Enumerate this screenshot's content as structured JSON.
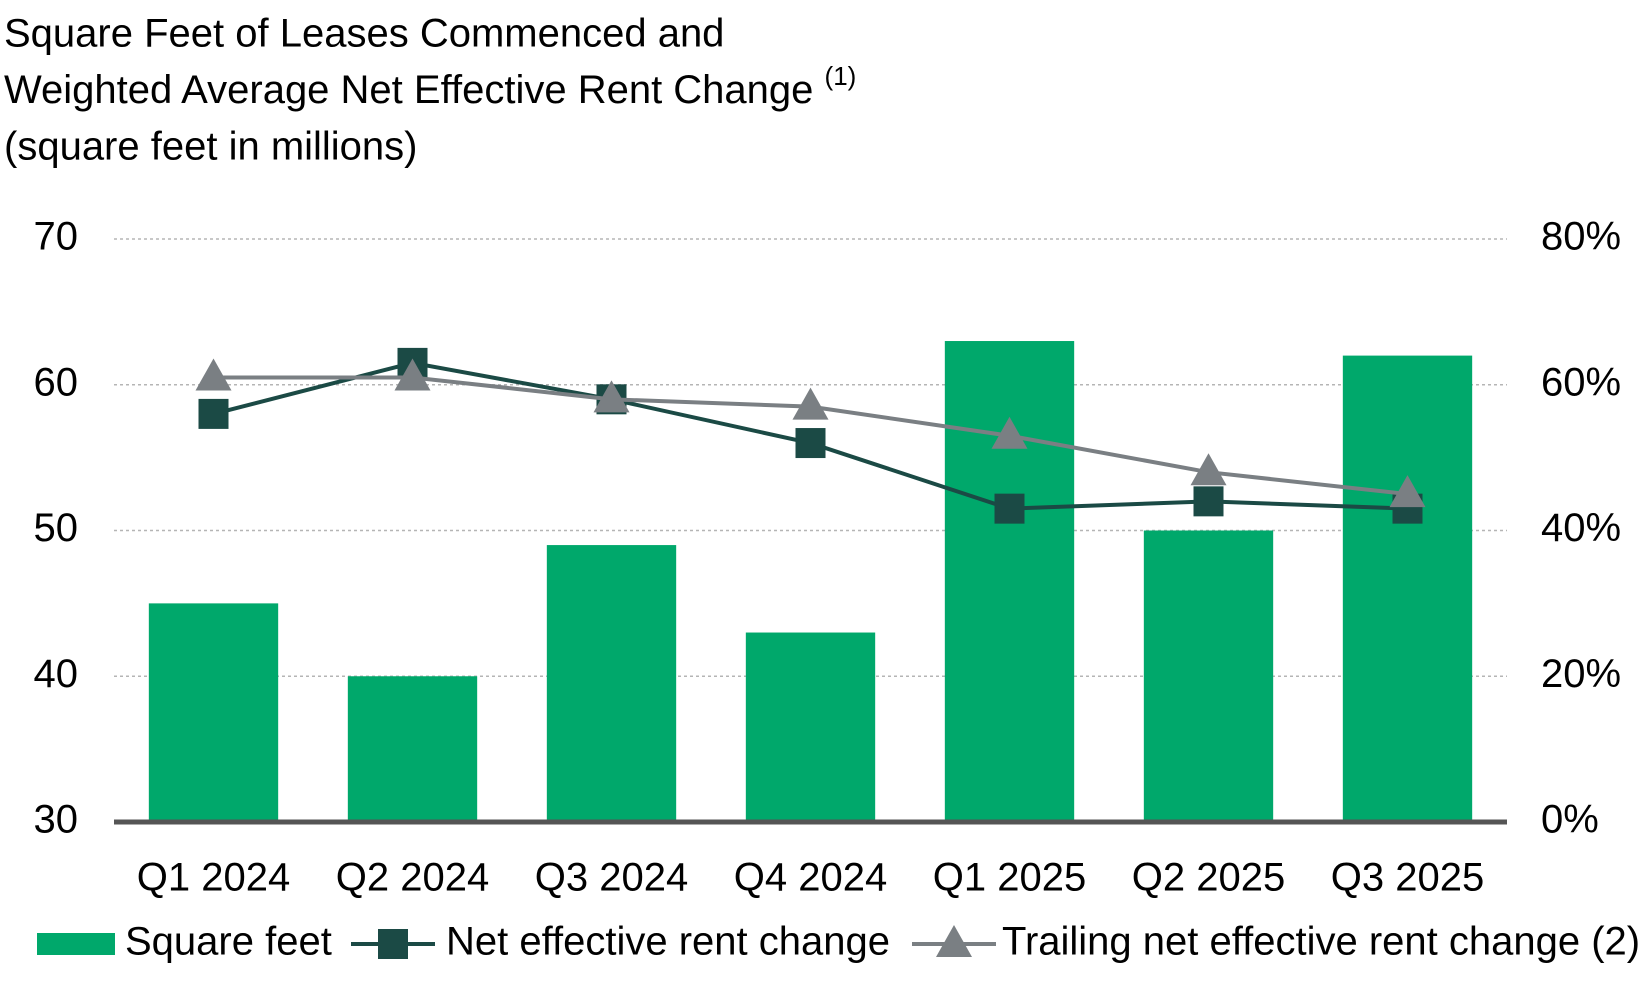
{
  "chart_data": {
    "type": "bar",
    "title": "Square Feet of Leases Commenced and",
    "title_line2": "Weighted Average Net Effective Rent Change",
    "title_superscript": "(1)",
    "subtitle": "(square feet in millions)",
    "categories": [
      "Q1 2024",
      "Q2 2024",
      "Q3 2024",
      "Q4 2024",
      "Q1 2025",
      "Q2 2025",
      "Q3 2025"
    ],
    "series": [
      {
        "name": "Square feet",
        "type": "bar",
        "color": "#00a86b",
        "values": [
          45,
          40,
          49,
          43,
          63,
          50,
          62
        ]
      },
      {
        "name": "Net effective rent change",
        "type": "line",
        "marker": "square",
        "axis": "y2",
        "color": "#1b4a45",
        "values": [
          56,
          63,
          58,
          52,
          43,
          44,
          43
        ]
      },
      {
        "name": "Trailing net effective rent change (2)",
        "type": "line",
        "marker": "triangle",
        "axis": "y2",
        "color": "#7a7f83",
        "values": [
          61,
          61,
          58,
          57,
          53,
          48,
          45
        ]
      }
    ],
    "ylim": [
      30,
      70
    ],
    "yticks": [
      30,
      40,
      50,
      60,
      70
    ],
    "y2lim": [
      0,
      80
    ],
    "y2ticks": [
      {
        "value": 0,
        "label": "0%"
      },
      {
        "value": 20,
        "label": "20%"
      },
      {
        "value": 40,
        "label": "40%"
      },
      {
        "value": 60,
        "label": "60%"
      },
      {
        "value": 80,
        "label": "80%"
      }
    ],
    "grid": true,
    "legend": "bottom"
  }
}
